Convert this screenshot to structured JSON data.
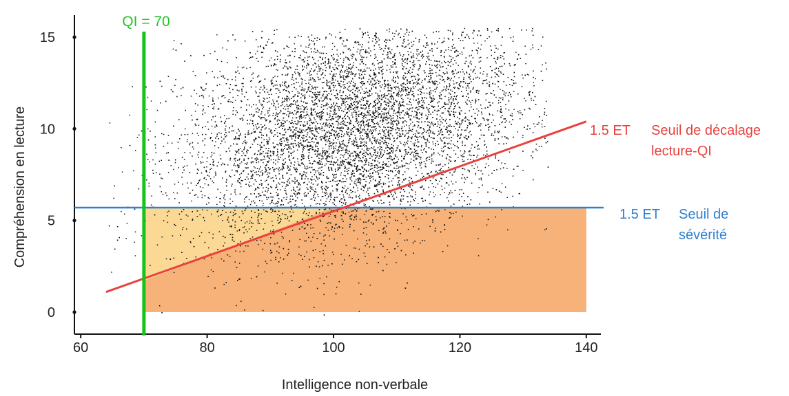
{
  "chart_data": {
    "type": "scatter",
    "title": "",
    "xlabel": "Intelligence non-verbale",
    "ylabel": "Compréhension en lecture",
    "xlim": [
      59,
      141
    ],
    "ylim": [
      -1.2,
      16.2
    ],
    "xticks": [
      60,
      80,
      100,
      120,
      140
    ],
    "yticks": [
      0,
      5,
      10,
      15
    ],
    "grid": false,
    "points_description_cloud": {
      "center": [
        103,
        10
      ],
      "sd": [
        13.5,
        3.1
      ],
      "correlation": 0.3,
      "x_range": [
        64,
        134
      ],
      "y_range": [
        -0.6,
        15.5
      ],
      "point_color": "#111111"
    },
    "regions": [
      {
        "x": [
          70,
          140
        ],
        "y": [
          0,
          5.7
        ],
        "color": "#f4a460",
        "opacity": 0.85
      },
      {
        "x": [
          70,
          100
        ],
        "y": [
          1.7,
          5.7
        ],
        "color": "#fde8a0",
        "opacity": 0.7,
        "shape": "triangle"
      }
    ],
    "lines": [
      {
        "name_label": "QI = 70",
        "orientation": "vertical",
        "x": 70,
        "y_extent": [
          -1.2,
          16.2
        ],
        "color": "#19c219"
      },
      {
        "name_label": "1.5 ET",
        "orientation": "horizontal",
        "y": 5.7,
        "x_extent": [
          59,
          141
        ],
        "color": "#2f80d0"
      },
      {
        "name_label": "1.5 ET",
        "orientation": "sloped",
        "x": [
          64,
          140
        ],
        "y": [
          1.1,
          10.4
        ],
        "color": "#e8413e"
      }
    ],
    "annotations": {
      "qi70": "QI = 70",
      "blue_et": "1.5 ET",
      "blue_label_line1": "Seuil de",
      "blue_label_line2": "sévérité",
      "red_et": "1.5 ET",
      "red_label_line1": "Seuil de décalage",
      "red_label_line2": "lecture-QI"
    }
  },
  "colors": {
    "green": "#19c219",
    "blue": "#2f80d0",
    "red": "#e8413e",
    "orange": "#f4a460",
    "yellow": "#fde8a0",
    "points": "#111111"
  }
}
